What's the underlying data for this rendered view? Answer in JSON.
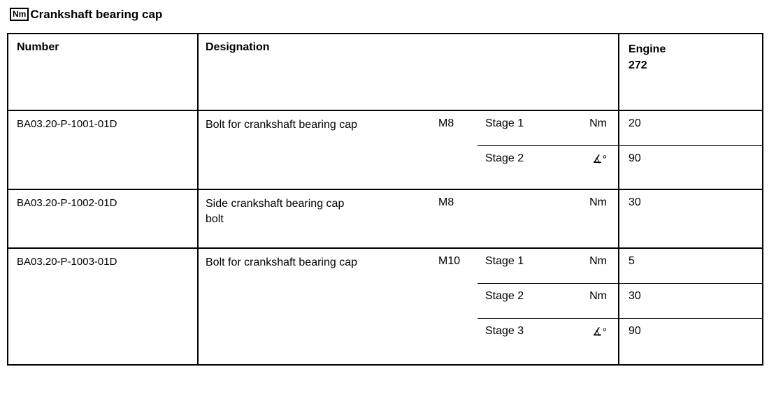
{
  "page": {
    "icon_label": "Nm",
    "title": "Crankshaft bearing cap"
  },
  "table": {
    "headers": {
      "number": "Number",
      "designation": "Designation",
      "engine": "Engine",
      "engine_code": "272"
    },
    "rows": [
      {
        "number": "BA03.20-P-1001-01D",
        "designation": "Bolt for crankshaft bearing cap",
        "size": "M8",
        "stages": [
          {
            "stage": "Stage 1",
            "unit": "Nm",
            "value": "20"
          },
          {
            "stage": "Stage 2",
            "unit": "∡°",
            "value": "90"
          }
        ]
      },
      {
        "number": "BA03.20-P-1002-01D",
        "designation": "Side crankshaft bearing cap bolt",
        "size": "M8",
        "stages": [
          {
            "stage": "",
            "unit": "Nm",
            "value": "30"
          }
        ]
      },
      {
        "number": "BA03.20-P-1003-01D",
        "designation": "Bolt for crankshaft bearing cap",
        "size": "M10",
        "stages": [
          {
            "stage": "Stage 1",
            "unit": "Nm",
            "value": "5"
          },
          {
            "stage": "Stage 2",
            "unit": "Nm",
            "value": "30"
          },
          {
            "stage": "Stage 3",
            "unit": "∡°",
            "value": "90"
          }
        ]
      }
    ]
  }
}
